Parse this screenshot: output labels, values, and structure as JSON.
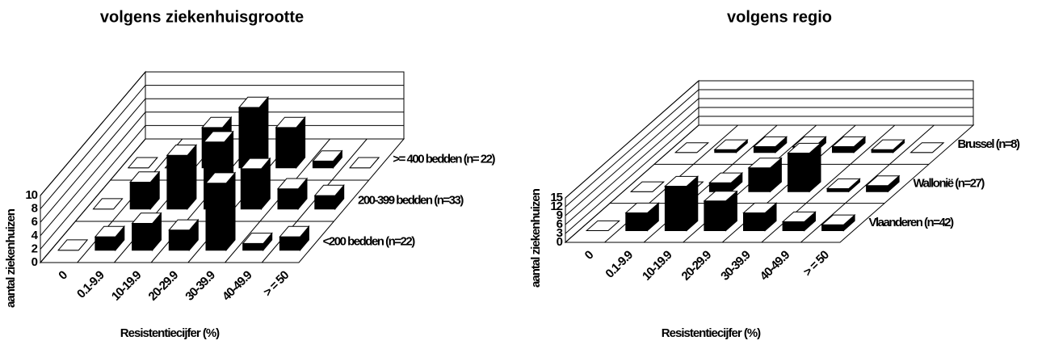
{
  "chart_data": [
    {
      "type": "bar3d",
      "title": "volgens ziekenhuisgrootte",
      "xlabel": "Resistentiecijfer (%)",
      "ylabel": "aantal ziekenhuizen",
      "categories": [
        "0",
        "0.1-9.9",
        "10-19.9",
        "20-29.9",
        "30-39.9",
        "40-49.9",
        "> = 50"
      ],
      "series": [
        {
          "name": "<200 bedden (n=22)",
          "color": "#000000",
          "values": [
            0,
            2,
            4,
            3,
            10,
            1,
            2
          ]
        },
        {
          "name": "200-399 bedden (n=33)",
          "color": "#000000",
          "values": [
            0,
            4,
            8,
            10,
            6,
            3,
            2
          ]
        },
        {
          "name": ">= 400 bedden (n= 22)",
          "color": "#000000",
          "values": [
            0,
            0,
            6,
            9,
            6,
            1,
            0
          ]
        }
      ],
      "ylim": [
        0,
        10
      ],
      "yticks": [
        0,
        2,
        4,
        6,
        8,
        10
      ],
      "grid": true
    },
    {
      "type": "bar3d",
      "title": "volgens regio",
      "xlabel": "Resistentiecijfer (%)",
      "ylabel": "aantal ziekenhuizen",
      "categories": [
        "0",
        "0.1-9.9",
        "10-19.9",
        "20-29.9",
        "30-39.9",
        "40-49.9",
        "> = 50"
      ],
      "series": [
        {
          "name": "Vlaanderen (n=42)",
          "color": "#000000",
          "values": [
            0,
            6,
            15,
            10,
            6,
            3,
            2
          ]
        },
        {
          "name": "Wallonië (n=27)",
          "color": "#000000",
          "values": [
            0,
            0,
            3,
            8,
            13,
            1,
            2
          ]
        },
        {
          "name": "Brussel (n=8)",
          "color": "#000000",
          "values": [
            0,
            1,
            2,
            2,
            2,
            1,
            0
          ]
        }
      ],
      "ylim": [
        0,
        15
      ],
      "yticks": [
        0,
        3,
        6,
        9,
        12,
        15
      ],
      "grid": true
    }
  ]
}
